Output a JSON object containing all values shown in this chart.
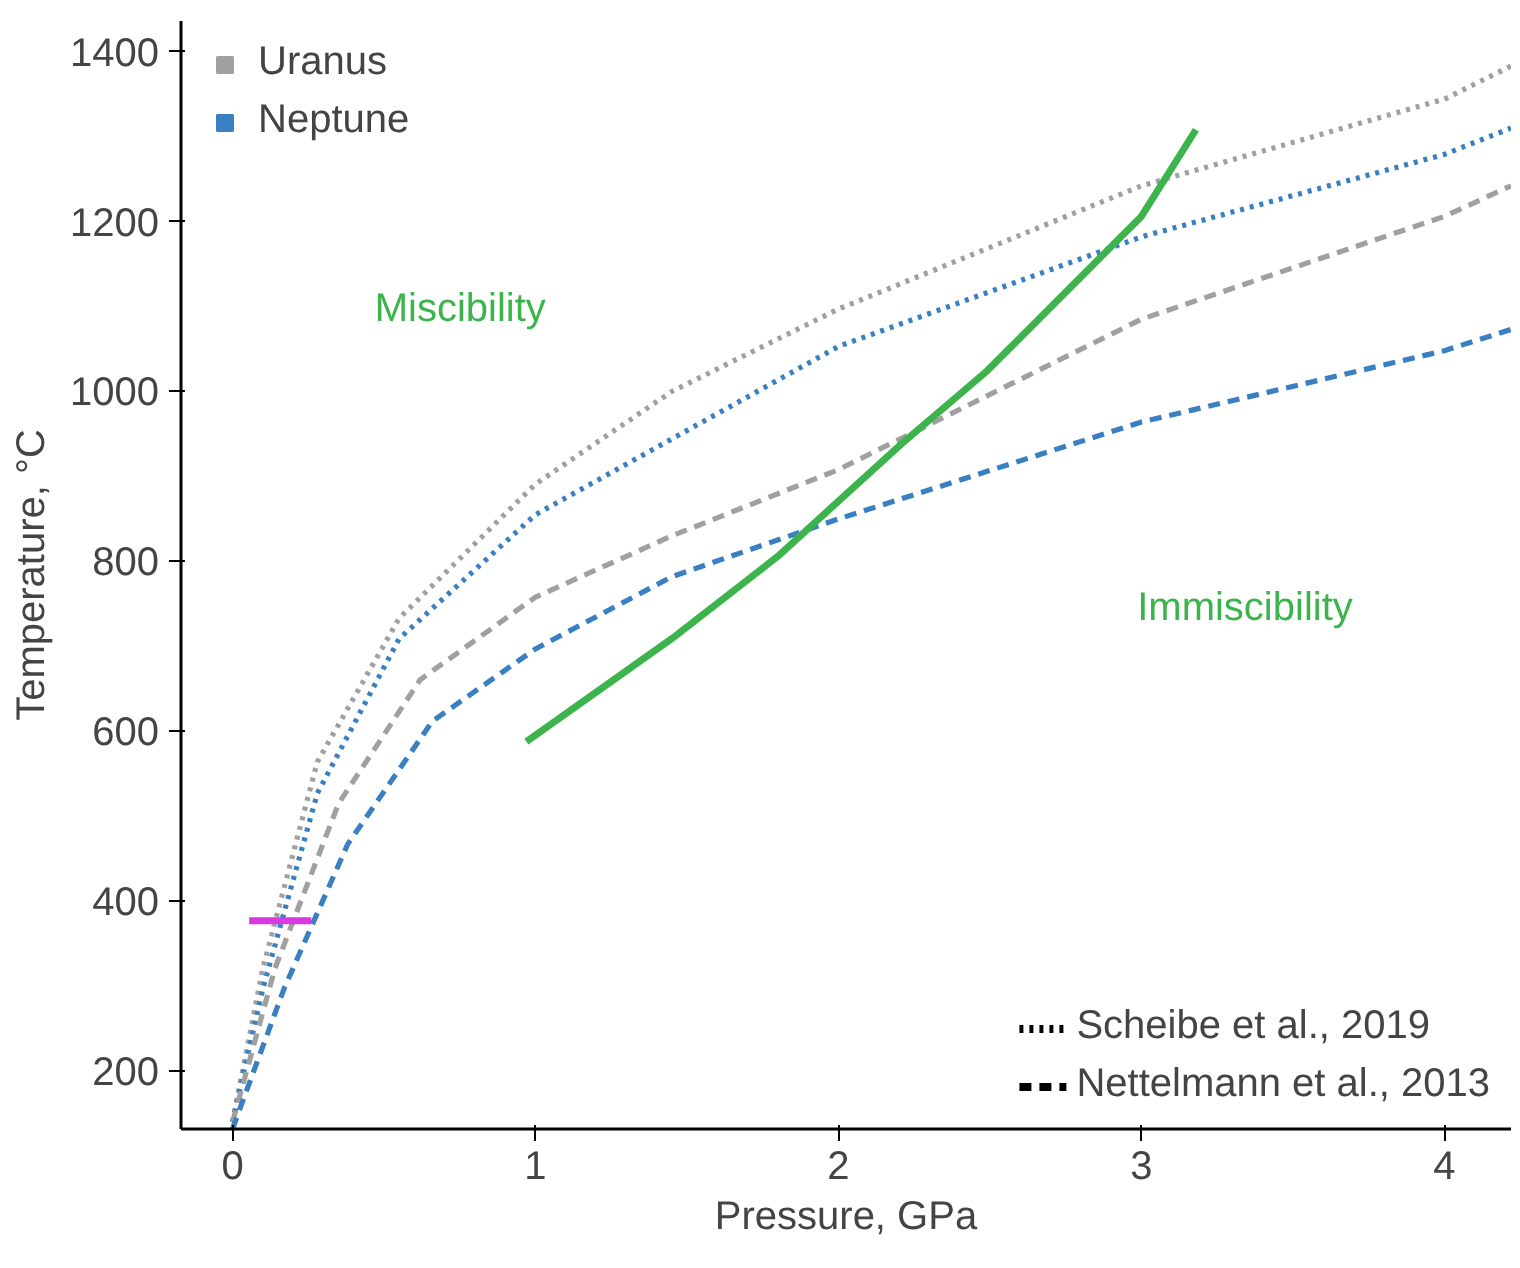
{
  "chart_data": {
    "type": "line",
    "xlabel": "Pressure, GPa",
    "ylabel": "Temperature, °C",
    "xlim": [
      -0.17,
      4.22
    ],
    "ylim": [
      132,
      1436
    ],
    "xticks": [
      0,
      1,
      2,
      3,
      4
    ],
    "yticks": [
      200,
      400,
      600,
      800,
      1000,
      1200,
      1400
    ],
    "grid": false,
    "legend": "top left",
    "marker": "none",
    "series": [
      {
        "name": "Uranus",
        "color": "#a0a0a0",
        "line_style": "dotted",
        "x": [
          0,
          0.1,
          0.28,
          0.55,
          1.0,
          1.45,
          2.0,
          3.0,
          4.0,
          4.22
        ],
        "values": [
          140,
          321,
          564,
          733,
          891,
          1000,
          1097,
          1242,
          1344,
          1383
        ]
      },
      {
        "name": "Neptune",
        "color": "#3a7fc1",
        "line_style": "dotted",
        "x": [
          0,
          0.1,
          0.28,
          0.55,
          1.0,
          2.0,
          3.0,
          4.0,
          4.22
        ],
        "values": [
          140,
          297,
          527,
          709,
          855,
          1053,
          1182,
          1279,
          1310
        ]
      },
      {
        "color": "#a0a0a0",
        "line_style": "dashed",
        "x": [
          0,
          0.14,
          0.35,
          0.62,
          1.0,
          1.45,
          2.0,
          3.0,
          4.0,
          4.22
        ],
        "values": [
          140,
          321,
          515,
          661,
          758,
          830,
          908,
          1085,
          1206,
          1242
        ]
      },
      {
        "color": "#3a7fc1",
        "line_style": "dashed",
        "x": [
          0,
          0.17,
          0.38,
          0.66,
          1.0,
          1.45,
          2.0,
          3.0,
          4.0,
          4.22
        ],
        "values": [
          132,
          297,
          467,
          612,
          697,
          782,
          850,
          964,
          1048,
          1073
        ]
      },
      {
        "color": "#3cb44b",
        "line_style": "solid",
        "x": [
          0.97,
          1.45,
          1.8,
          2.21,
          2.49,
          3.0,
          3.18
        ],
        "values": [
          588,
          709,
          806,
          939,
          1024,
          1206,
          1308
        ]
      },
      {
        "color": "#d63ae0",
        "line_style": "solid",
        "x": [
          0.055,
          0.26
        ],
        "values": [
          377,
          377
        ]
      }
    ],
    "annotations": [
      "Scheibe et al., 2019",
      "Nettelmann et al., 2013",
      "Miscibility",
      "Immiscibility"
    ]
  }
}
